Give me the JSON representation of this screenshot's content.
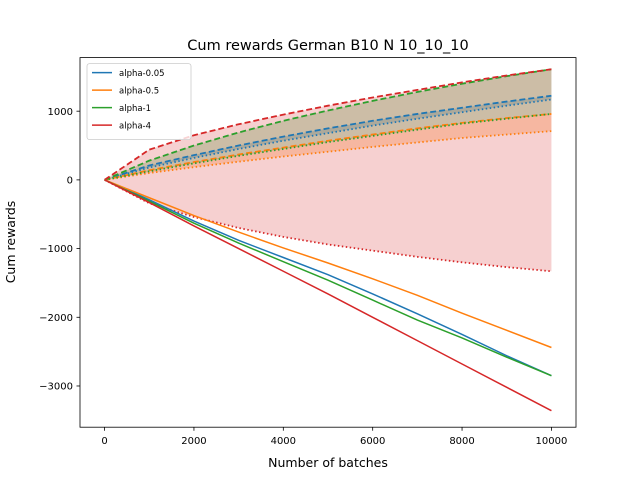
{
  "chart_data": {
    "type": "line",
    "title": "Cum rewards German B10 N 10_10_10",
    "xlabel": "Number of batches",
    "ylabel": "Cum rewards",
    "xlim": [
      -550,
      10550
    ],
    "ylim": [
      -3600,
      1780
    ],
    "xticks": [
      0,
      2000,
      4000,
      6000,
      8000,
      10000
    ],
    "xtick_labels": [
      "0",
      "2000",
      "4000",
      "6000",
      "8000",
      "10000"
    ],
    "yticks": [
      -3000,
      -2000,
      -1000,
      0,
      1000
    ],
    "ytick_labels": [
      "−3000",
      "−2000",
      "−1000",
      "0",
      "1000"
    ],
    "grid": false,
    "legend_position": "upper-left",
    "series": [
      {
        "name": "alpha-0.05",
        "color": "#1f77b4",
        "x": [
          0,
          1000,
          2000,
          3000,
          4000,
          5000,
          6000,
          7000,
          8000,
          9000,
          10000
        ],
        "values": [
          0,
          -290,
          -600,
          -880,
          -1130,
          -1380,
          -1660,
          -1950,
          -2250,
          -2560,
          -2850
        ],
        "upper": [
          0,
          210,
          360,
          500,
          630,
          750,
          860,
          960,
          1050,
          1140,
          1225
        ],
        "lower": [
          0,
          180,
          320,
          450,
          570,
          680,
          790,
          890,
          985,
          1080,
          1170
        ],
        "band": [
          {
            "upper": [
              0,
              210,
              360,
              500,
              630,
              750,
              860,
              960,
              1050,
              1140,
              1225
            ],
            "lower": [
              0,
              180,
              320,
              450,
              570,
              680,
              790,
              890,
              985,
              1080,
              1170
            ]
          }
        ],
        "band_opacity": 0.25
      },
      {
        "name": "alpha-0.5",
        "color": "#ff7f0e",
        "x": [
          0,
          1000,
          2000,
          3000,
          4000,
          5000,
          6000,
          7000,
          8000,
          9000,
          10000
        ],
        "values": [
          0,
          -260,
          -520,
          -760,
          -990,
          -1210,
          -1440,
          -1680,
          -1940,
          -2190,
          -2440
        ],
        "upper": [
          0,
          140,
          260,
          370,
          470,
          570,
          660,
          750,
          830,
          900,
          960
        ],
        "lower": [
          0,
          100,
          185,
          265,
          340,
          410,
          480,
          545,
          610,
          660,
          710
        ],
        "band": [
          {
            "upper": [
              0,
              140,
              260,
              370,
              470,
              570,
              660,
              750,
              830,
              900,
              960
            ],
            "lower": [
              0,
              100,
              185,
              265,
              340,
              410,
              480,
              545,
              610,
              660,
              710
            ]
          }
        ],
        "band_opacity": 0.25
      },
      {
        "name": "alpha-1",
        "color": "#2ca02c",
        "x": [
          0,
          1000,
          2000,
          3000,
          4000,
          5000,
          6000,
          7000,
          8000,
          9000,
          10000
        ],
        "values": [
          0,
          -310,
          -630,
          -920,
          -1190,
          -1460,
          -1750,
          -2040,
          -2300,
          -2580,
          -2850
        ],
        "upper": [
          0,
          280,
          500,
          690,
          860,
          1010,
          1150,
          1280,
          1400,
          1510,
          1610
        ],
        "lower": [
          0,
          125,
          240,
          350,
          450,
          550,
          640,
          730,
          820,
          890,
          960
        ],
        "band": [
          {
            "upper": [
              0,
              280,
              500,
              690,
              860,
              1010,
              1150,
              1280,
              1400,
              1510,
              1610
            ],
            "lower": [
              0,
              125,
              240,
              350,
              450,
              550,
              640,
              730,
              820,
              890,
              960
            ]
          }
        ],
        "band_opacity": 0.25
      },
      {
        "name": "alpha-4",
        "color": "#d62728",
        "x": [
          0,
          1000,
          2000,
          3000,
          4000,
          5000,
          6000,
          7000,
          8000,
          9000,
          10000
        ],
        "values": [
          0,
          -330,
          -670,
          -1000,
          -1330,
          -1660,
          -2000,
          -2340,
          -2680,
          -3020,
          -3360
        ],
        "upper": [
          0,
          440,
          650,
          810,
          950,
          1080,
          1200,
          1310,
          1420,
          1520,
          1610
        ],
        "lower": [
          0,
          -340,
          -540,
          -700,
          -830,
          -940,
          -1030,
          -1120,
          -1200,
          -1270,
          -1330
        ],
        "band": [
          {
            "upper": [
              0,
              440,
              650,
              810,
              950,
              1080,
              1200,
              1310,
              1420,
              1520,
              1610
            ],
            "lower": [
              0,
              -340,
              -540,
              -700,
              -830,
              -940,
              -1030,
              -1120,
              -1200,
              -1270,
              -1330
            ]
          }
        ],
        "band_opacity": 0.22
      }
    ]
  }
}
